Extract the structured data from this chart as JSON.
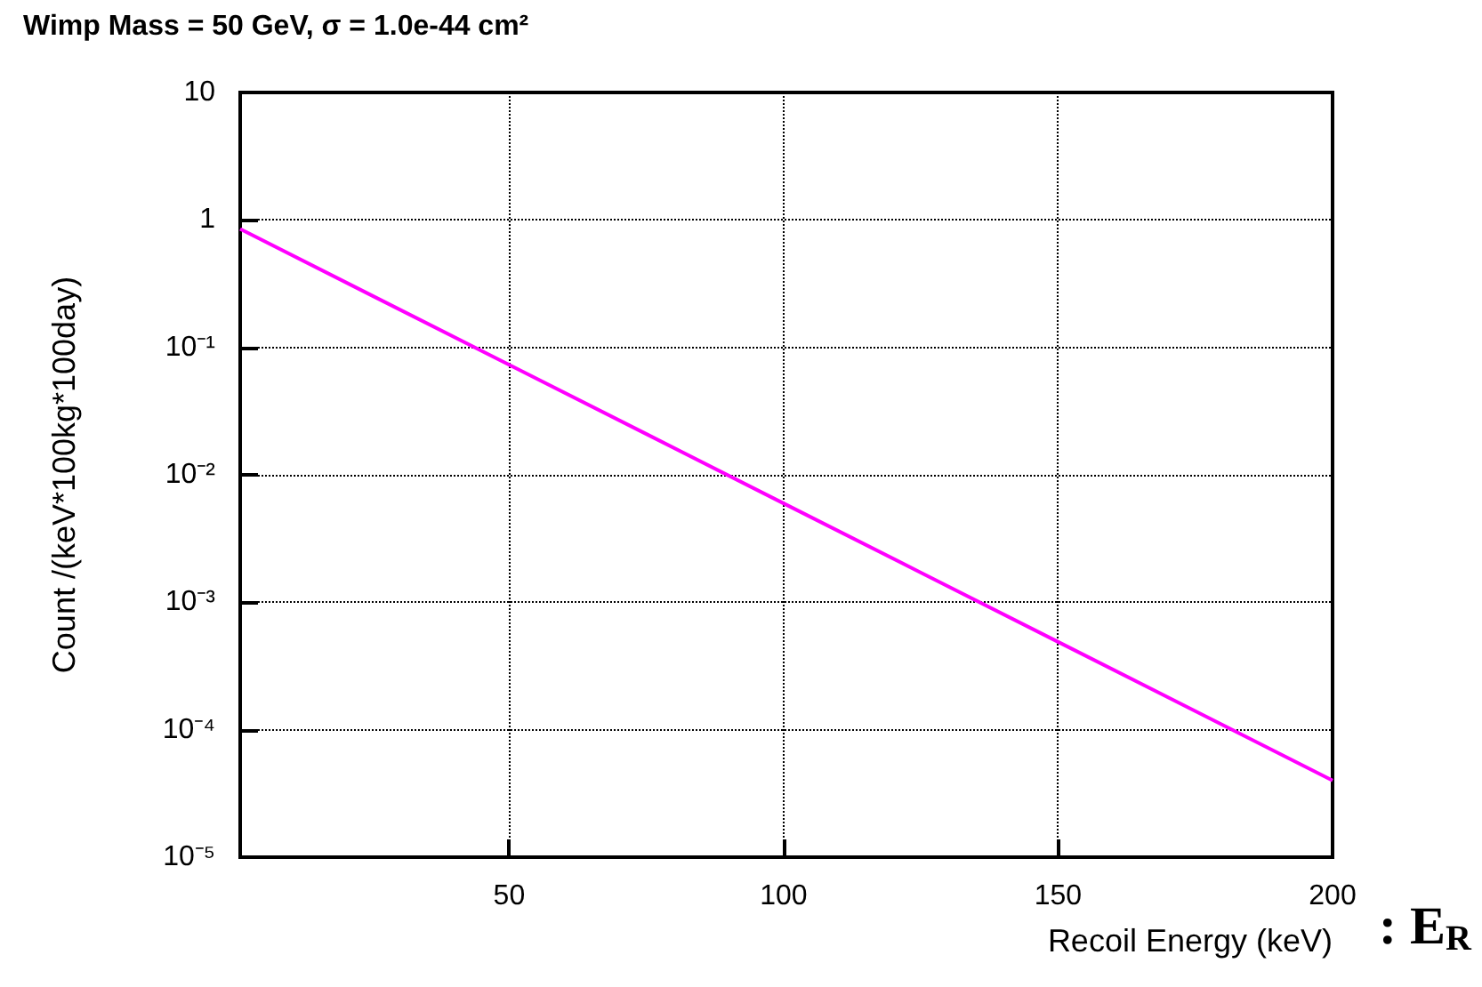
{
  "chart_data": {
    "type": "line",
    "title": "Wimp Mass = 50 GeV, σ = 1.0e-44 cm²",
    "xlabel": "Recoil Energy (keV)",
    "ylabel": "Count /(keV*100kg*100day)",
    "annotations": [
      ": E$_{R}$"
    ],
    "x": [
      1,
      25,
      50,
      75,
      100,
      125,
      150,
      175,
      200
    ],
    "series": [
      {
        "color": "#ff00ff",
        "values": [
          0.85,
          0.255,
          0.0731,
          0.0209,
          0.00597,
          0.00171,
          0.000489,
          0.00014,
          4e-05
        ]
      }
    ],
    "xlim": [
      1,
      200
    ],
    "xticks": [
      50,
      100,
      150,
      200
    ],
    "ylim": [
      1e-05,
      10
    ],
    "yticks": [
      {
        "value": 1e-05,
        "label": "10⁻⁵"
      },
      {
        "value": 0.0001,
        "label": "10⁻⁴"
      },
      {
        "value": 0.001,
        "label": "10⁻³"
      },
      {
        "value": 0.01,
        "label": "10⁻²"
      },
      {
        "value": 0.1,
        "label": "10⁻¹"
      },
      1,
      10
    ],
    "log": "y",
    "grid": true,
    "marker": "none",
    "line_style": "solid"
  }
}
